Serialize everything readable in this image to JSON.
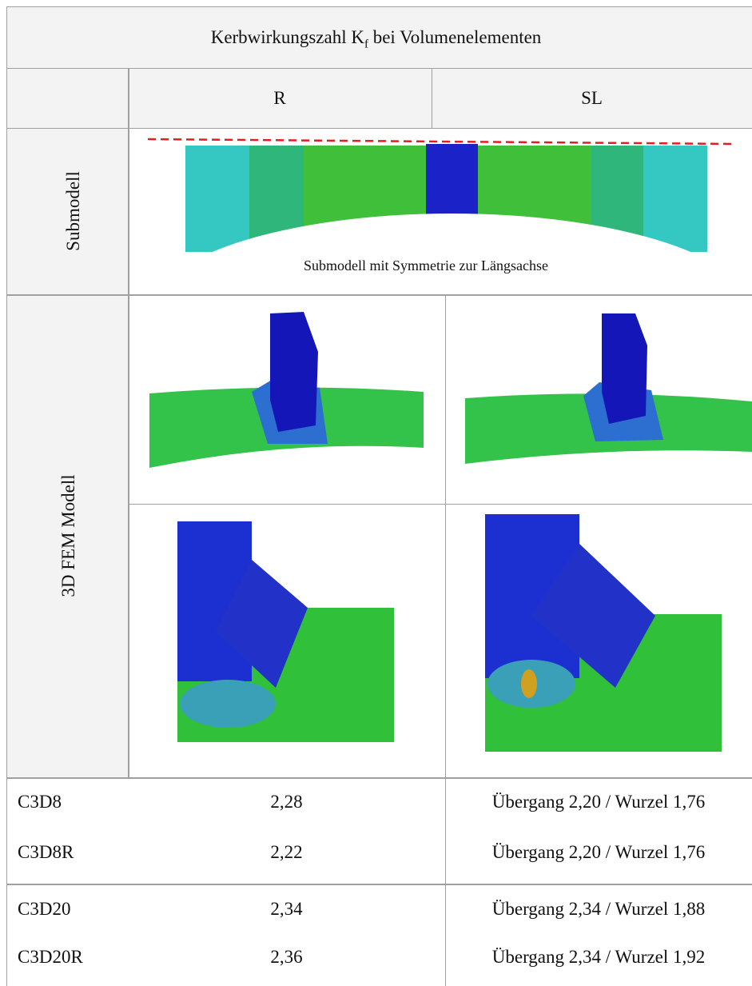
{
  "header": {
    "title": {
      "before": "Kerbwirkungszahl K",
      "subscript": "f",
      "after": " bei Volumenelementen"
    }
  },
  "columns": [
    "R",
    "SL"
  ],
  "submodel": {
    "label": "Submodell",
    "caption": "Submodell mit Symmetrie zur Längsachse"
  },
  "fem": {
    "label": "3D FEM Modell"
  },
  "results": [
    [
      "C3D8",
      "2,28",
      "Übergang 2,20 / Wurzel 1,76"
    ],
    [
      "C3D8R",
      "2,22",
      "Übergang 2,20 / Wurzel 1,76"
    ],
    [
      "C3D20",
      "2,34",
      "Übergang 2,34 / Wurzel 1,88"
    ],
    [
      "C3D20R",
      "2,36",
      "Übergang 2,34 / Wurzel 1,92"
    ]
  ]
}
